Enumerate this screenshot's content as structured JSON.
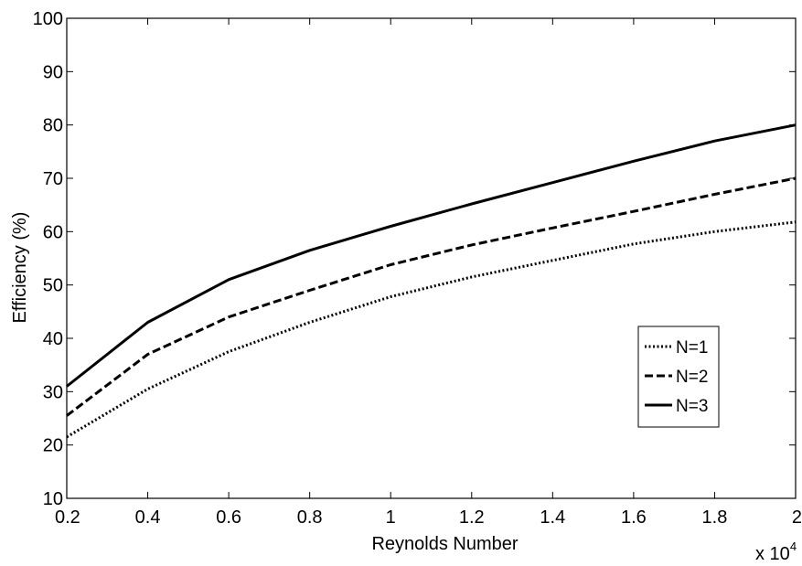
{
  "chart_data": {
    "type": "line",
    "title": "",
    "xlabel": "Reynolds Number",
    "ylabel": "Efficiency (%)",
    "x_multiplier": "x 10",
    "x_multiplier_exp": "4",
    "x": [
      0.2,
      0.4,
      0.6,
      0.8,
      1.0,
      1.2,
      1.4,
      1.6,
      1.8,
      2.0
    ],
    "xlim": [
      0.2,
      2.0
    ],
    "ylim": [
      10,
      100
    ],
    "xticks": [
      "0.2",
      "0.4",
      "0.6",
      "0.8",
      "1",
      "1.2",
      "1.4",
      "1.6",
      "1.8",
      "2"
    ],
    "yticks": [
      "10",
      "20",
      "30",
      "40",
      "50",
      "60",
      "70",
      "80",
      "90",
      "100"
    ],
    "grid": false,
    "legend_position": "right",
    "series": [
      {
        "name": "N=1",
        "style": "dotted",
        "values": [
          21.5,
          30.5,
          37.5,
          43,
          47.8,
          51.5,
          54.6,
          57.7,
          60,
          61.8
        ]
      },
      {
        "name": "N=2",
        "style": "dashed",
        "values": [
          25.5,
          37,
          44,
          49,
          53.8,
          57.5,
          60.7,
          63.8,
          67,
          70
        ]
      },
      {
        "name": "N=3",
        "style": "solid",
        "values": [
          31,
          43,
          51,
          56.5,
          61,
          65.2,
          69.2,
          73.2,
          77,
          80
        ]
      }
    ]
  }
}
